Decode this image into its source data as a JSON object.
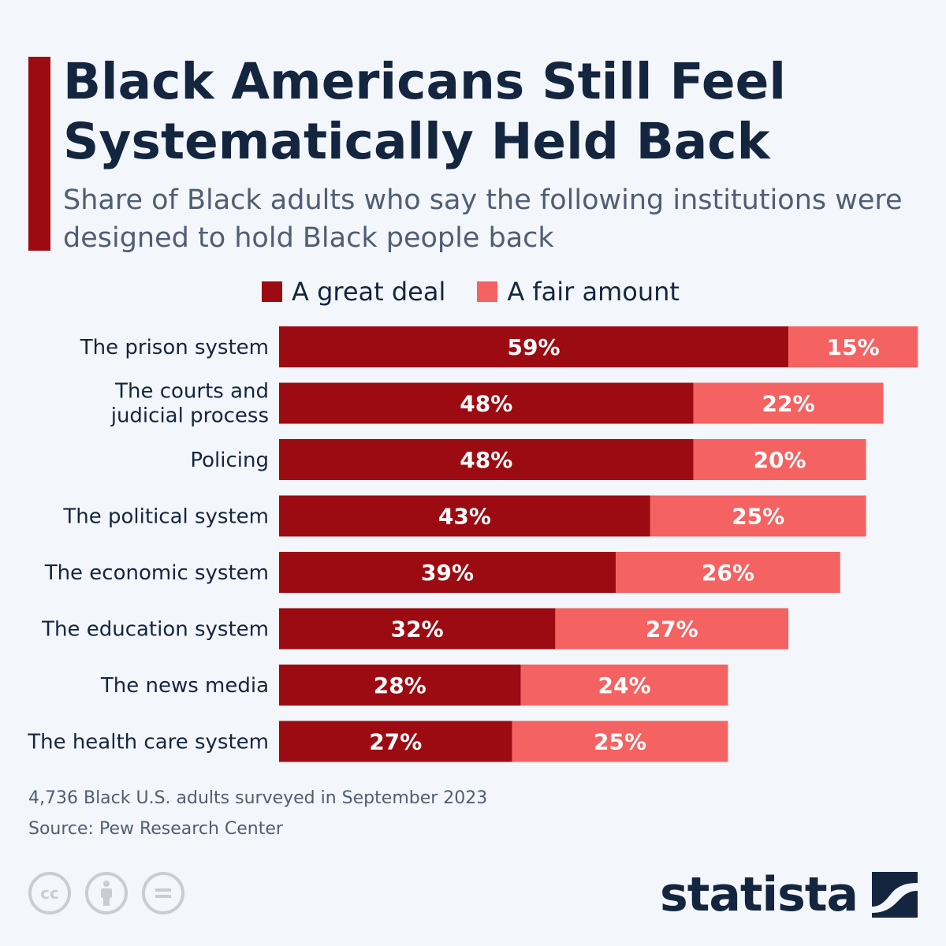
{
  "header": {
    "title": "Black Americans Still Feel Systematically Held Back",
    "subtitle": "Share of Black adults who say the following institutions were designed to hold Black people back"
  },
  "colors": {
    "accent": "#9d0b12",
    "great_deal": "#9d0b12",
    "fair_amount": "#f56262",
    "text": "#14263f"
  },
  "chart_data": {
    "type": "bar",
    "orientation": "horizontal",
    "stacked": true,
    "categories": [
      "The prison system",
      "The courts and judicial process",
      "Policing",
      "The political system",
      "The economic system",
      "The education system",
      "The news media",
      "The health care system"
    ],
    "series": [
      {
        "name": "A great deal",
        "values": [
          59,
          48,
          48,
          43,
          39,
          32,
          28,
          27
        ],
        "color": "#9d0b12"
      },
      {
        "name": "A fair amount",
        "values": [
          15,
          22,
          20,
          25,
          26,
          27,
          24,
          25
        ],
        "color": "#f56262"
      }
    ],
    "value_suffix": "%",
    "legend_placement": "top",
    "grid": false
  },
  "footer": {
    "survey_note": "4,736 Black U.S. adults surveyed in September 2023",
    "source": "Source: Pew Research Center",
    "brand": "statista",
    "license_icons": [
      "cc-icon",
      "attribution-icon",
      "no-derivatives-icon"
    ]
  }
}
